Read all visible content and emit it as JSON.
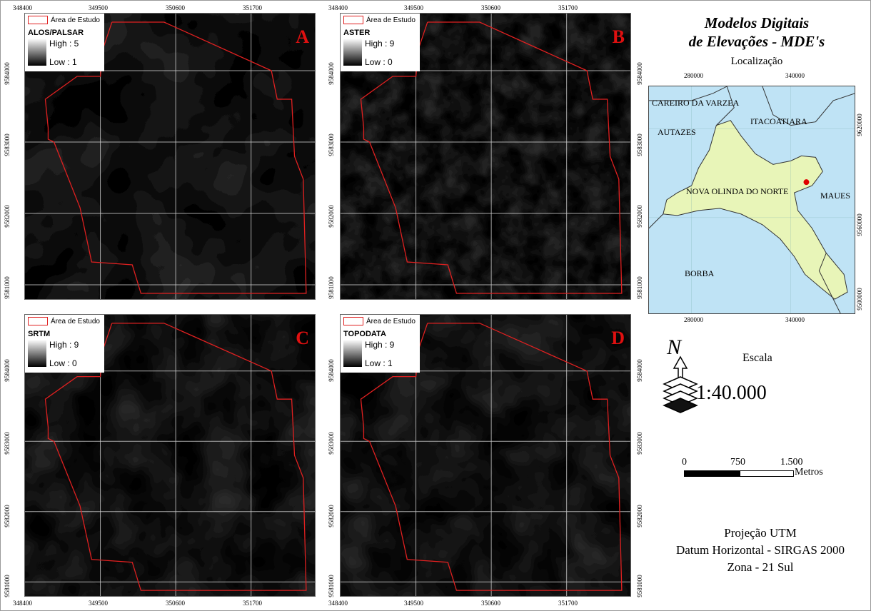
{
  "map_title_line1": "Modelos Digitais",
  "map_title_line2": "de Elevações - MDE's",
  "panels": [
    {
      "letter": "A",
      "legend_boundary": "Área de Estudo",
      "dataset": "ALOS/PALSAR",
      "high": "High : 5",
      "low": "Low : 1"
    },
    {
      "letter": "B",
      "legend_boundary": "Área de Estudo",
      "dataset": "ASTER",
      "high": "High : 9",
      "low": "Low : 0"
    },
    {
      "letter": "C",
      "legend_boundary": "Área de Estudo",
      "dataset": "SRTM",
      "high": "High : 9",
      "low": "Low : 0"
    },
    {
      "letter": "D",
      "legend_boundary": "Área de Estudo",
      "dataset": "TOPODATA",
      "high": "High : 9",
      "low": "Low : 1"
    }
  ],
  "x_ticks": [
    "348400",
    "349500",
    "350600",
    "351700"
  ],
  "y_ticks_top": [
    "9584000",
    "9583000",
    "9582000",
    "9581000"
  ],
  "y_ticks_bottom": [
    "9584000",
    "9583000",
    "9582000",
    "9581000"
  ],
  "location": {
    "title": "Localização",
    "x_ticks": [
      "280000",
      "340000"
    ],
    "y_ticks": [
      "9620000",
      "9560000",
      "9500000"
    ],
    "labels": [
      "CAREIRO DA VARZEA",
      "ITACOATIARA",
      "AUTAZES",
      "NOVA OLINDA DO NORTE",
      "MAUES",
      "BORBA"
    ],
    "colors": {
      "water": "#bfe3f5",
      "municipality": "#e8f5b8",
      "marker": "#e00000"
    }
  },
  "scale": {
    "label": "Escala",
    "ratio": "1:40.000",
    "bar_labels": [
      "0",
      "750",
      "1.500"
    ],
    "unit": "Metros"
  },
  "projection": {
    "line1": "Projeção UTM",
    "line2": "Datum Horizontal - SIRGAS 2000",
    "line3": "Zona - 21 Sul"
  },
  "north_arrow": "N",
  "colors": {
    "boundary": "#e02020",
    "letter": "#e01010"
  }
}
